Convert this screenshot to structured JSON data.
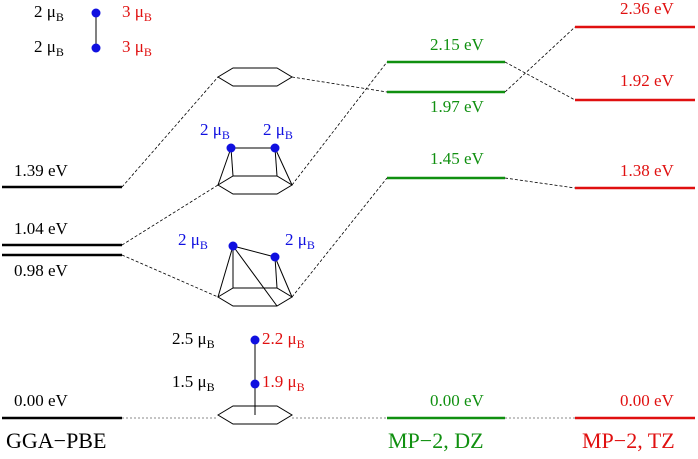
{
  "columns": [
    {
      "name": "GGA−PBE",
      "levels": [
        "1.39 eV",
        "1.04 eV",
        "0.98 eV",
        "0.00 eV"
      ]
    },
    {
      "name": "MP−2, DZ",
      "levels": [
        "2.15 eV",
        "1.97 eV",
        "1.45 eV",
        "0.00 eV"
      ]
    },
    {
      "name": "MP−2, TZ",
      "levels": [
        "2.36 eV",
        "1.92 eV",
        "1.38 eV",
        "0.00 eV"
      ]
    }
  ],
  "legend": [
    {
      "text": "2 μ",
      "sub": "B"
    },
    {
      "text": "3 μ",
      "sub": "B"
    },
    {
      "text": "2 μ",
      "sub": "B"
    },
    {
      "text": "3 μ",
      "sub": "B"
    }
  ],
  "structures": [
    {
      "moments": [
        {
          "text": "2 μ",
          "sub": "B"
        },
        {
          "text": "2 μ",
          "sub": "B"
        }
      ]
    },
    {
      "moments": [
        {
          "text": "2 μ",
          "sub": "B"
        },
        {
          "text": "2 μ",
          "sub": "B"
        }
      ]
    },
    {
      "moments": [
        {
          "text": "2.5 μ",
          "sub": "B"
        },
        {
          "text": "2.2 μ",
          "sub": "B"
        },
        {
          "text": "1.5 μ",
          "sub": "B"
        },
        {
          "text": "1.9 μ",
          "sub": "B"
        }
      ]
    }
  ]
}
